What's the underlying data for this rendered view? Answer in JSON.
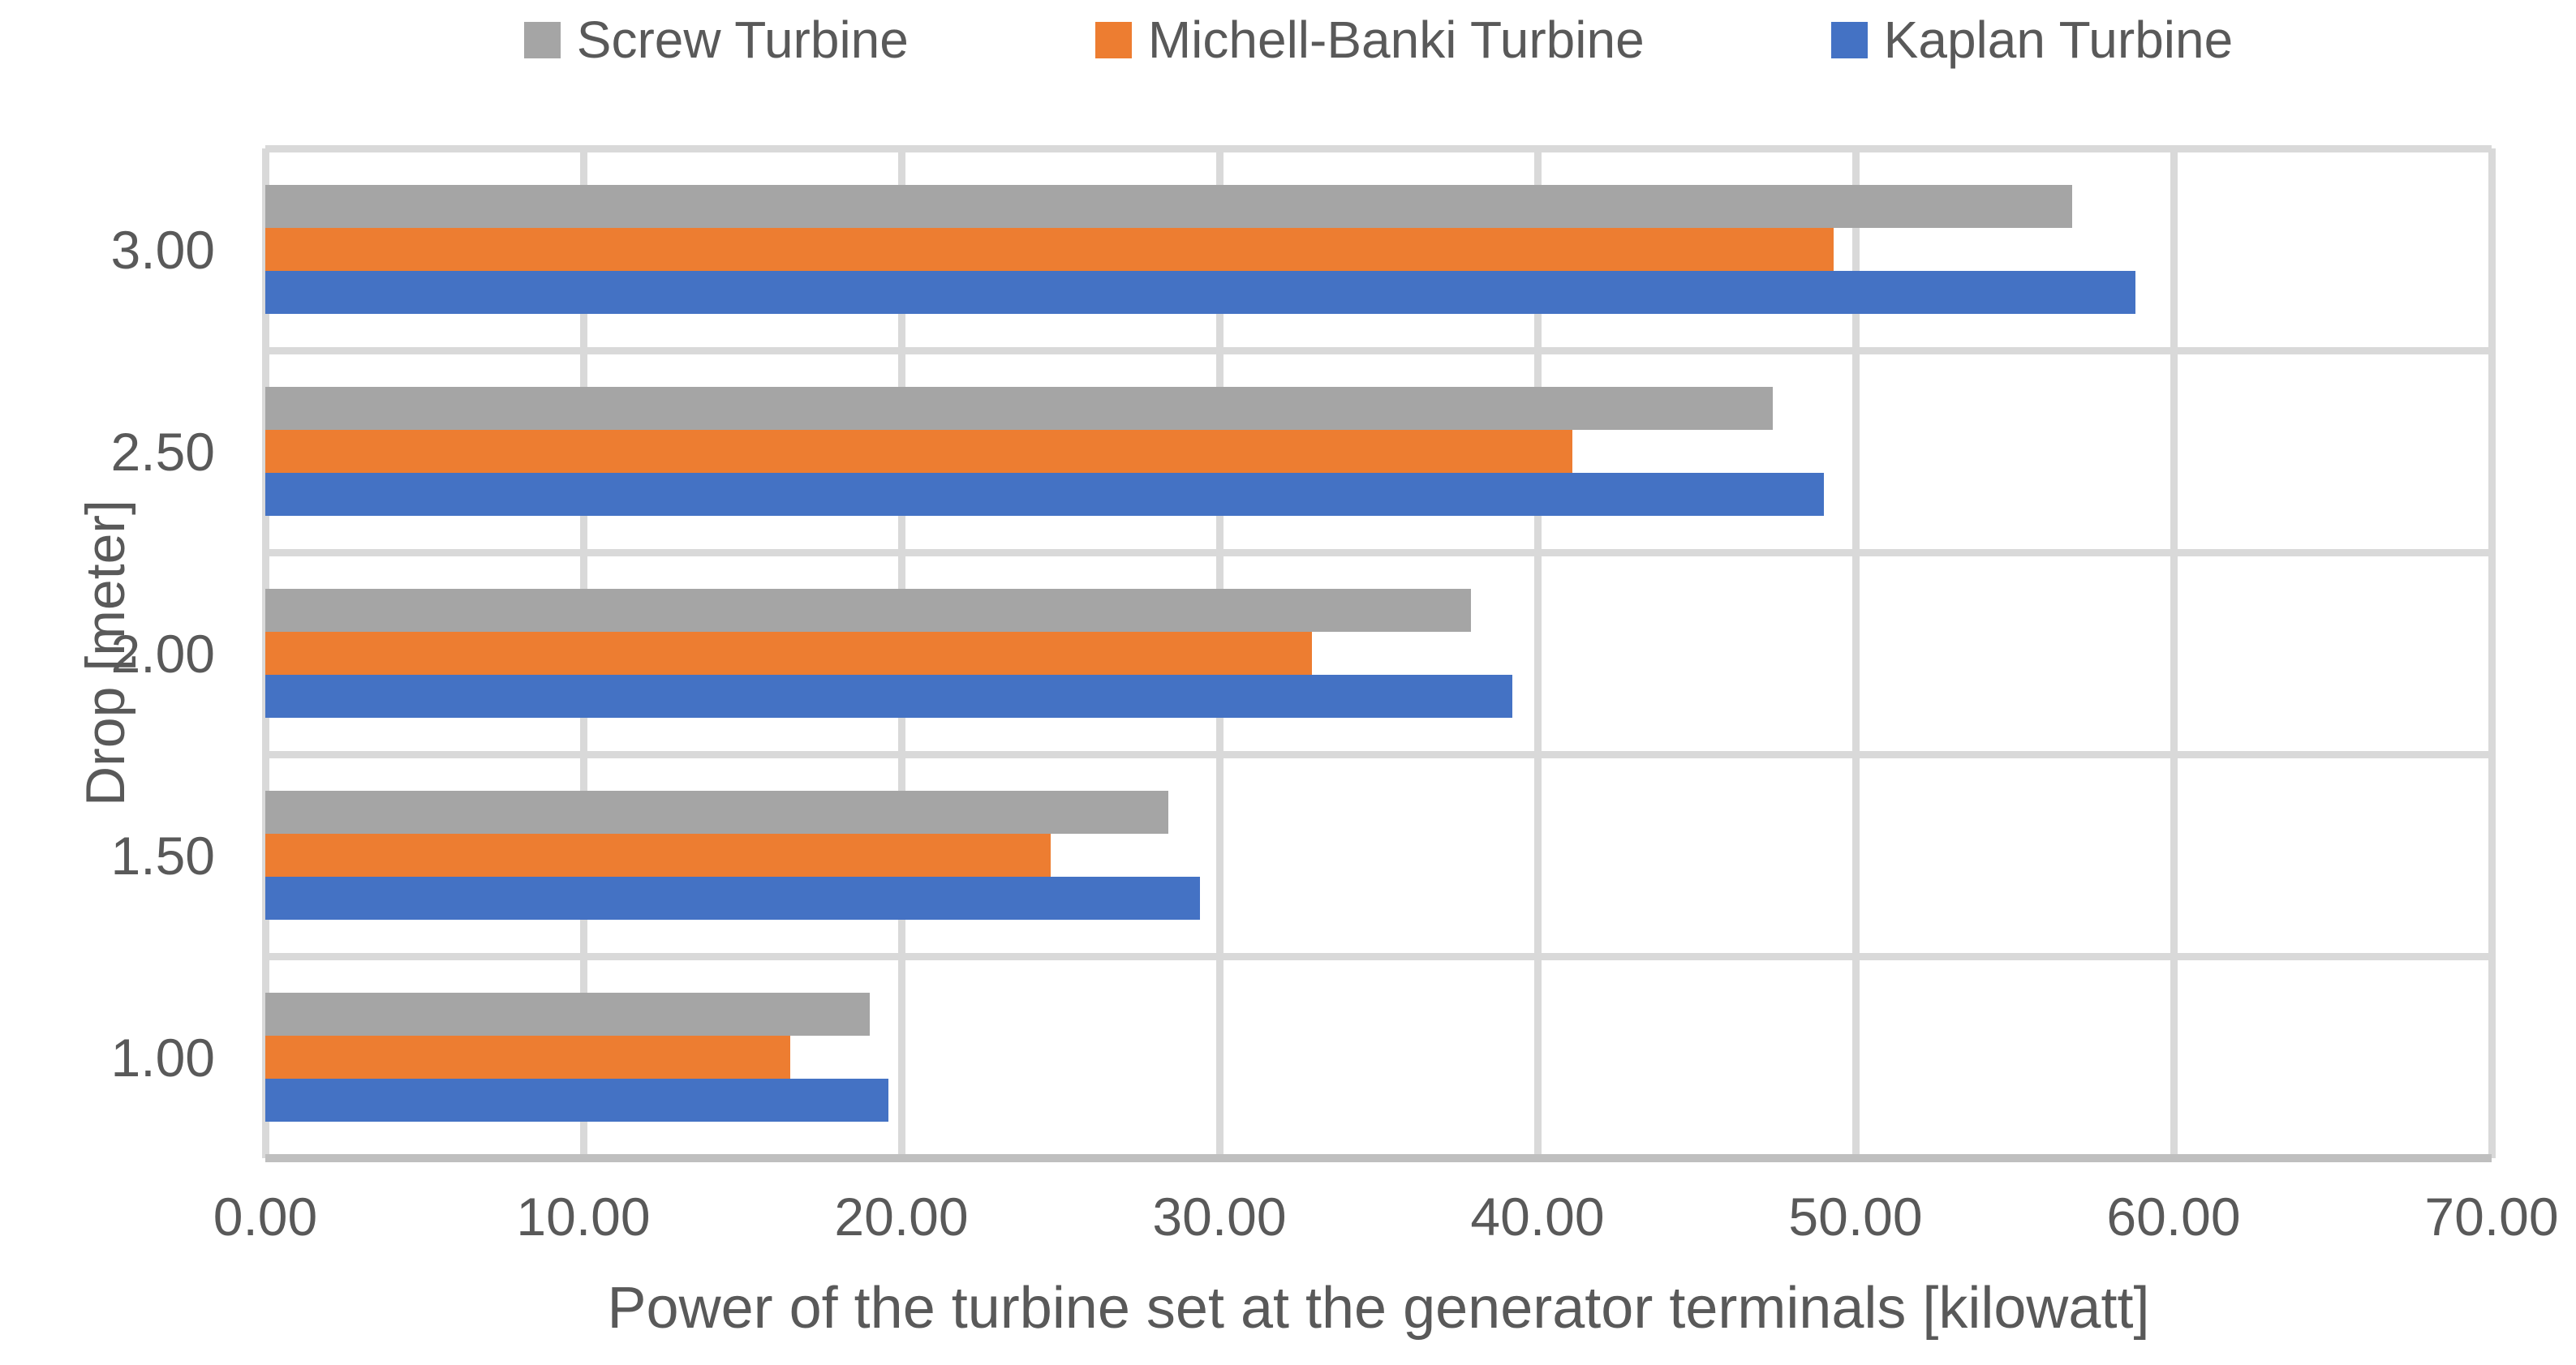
{
  "chart_data": {
    "type": "bar",
    "orientation": "horizontal",
    "title": "",
    "xlabel": "Power of the turbine set at the generator terminals [kilowatt]",
    "ylabel": "Drop [meter]",
    "xlim": [
      0,
      70
    ],
    "x_tick_labels": [
      "0.00",
      "10.00",
      "20.00",
      "30.00",
      "40.00",
      "50.00",
      "60.00",
      "70.00"
    ],
    "categories": [
      "3.00",
      "2.50",
      "2.00",
      "1.50",
      "1.00"
    ],
    "grid": true,
    "legend_position": "top",
    "series": [
      {
        "name": "Screw Turbine",
        "color": "#A5A5A5",
        "values": [
          56.8,
          47.4,
          37.9,
          28.4,
          19.0
        ]
      },
      {
        "name": "Michell-Banki Turbine",
        "color": "#ED7D31",
        "values": [
          49.3,
          41.1,
          32.9,
          24.7,
          16.5
        ]
      },
      {
        "name": "Kaplan Turbine",
        "color": "#4472C4",
        "values": [
          58.8,
          49.0,
          39.2,
          29.4,
          19.6
        ]
      }
    ]
  },
  "colors": {
    "text": "#595959",
    "gridline": "#D9D9D9",
    "axis_line": "#BFBFBF",
    "background": "#FFFFFF"
  }
}
